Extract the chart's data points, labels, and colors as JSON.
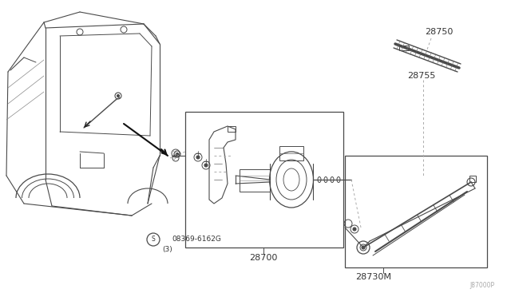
{
  "bg_color": "#ffffff",
  "line_color": "#4a4a4a",
  "text_color": "#333333",
  "gray_color": "#888888",
  "labels": {
    "part_num": "08369-6162G",
    "part_qty": "(3)",
    "diagram_num": "J87000P",
    "l28750": "28750",
    "l28755": "28755",
    "l28700": "28700",
    "l28730M": "28730M"
  },
  "figsize": [
    6.4,
    3.72
  ],
  "dpi": 100
}
